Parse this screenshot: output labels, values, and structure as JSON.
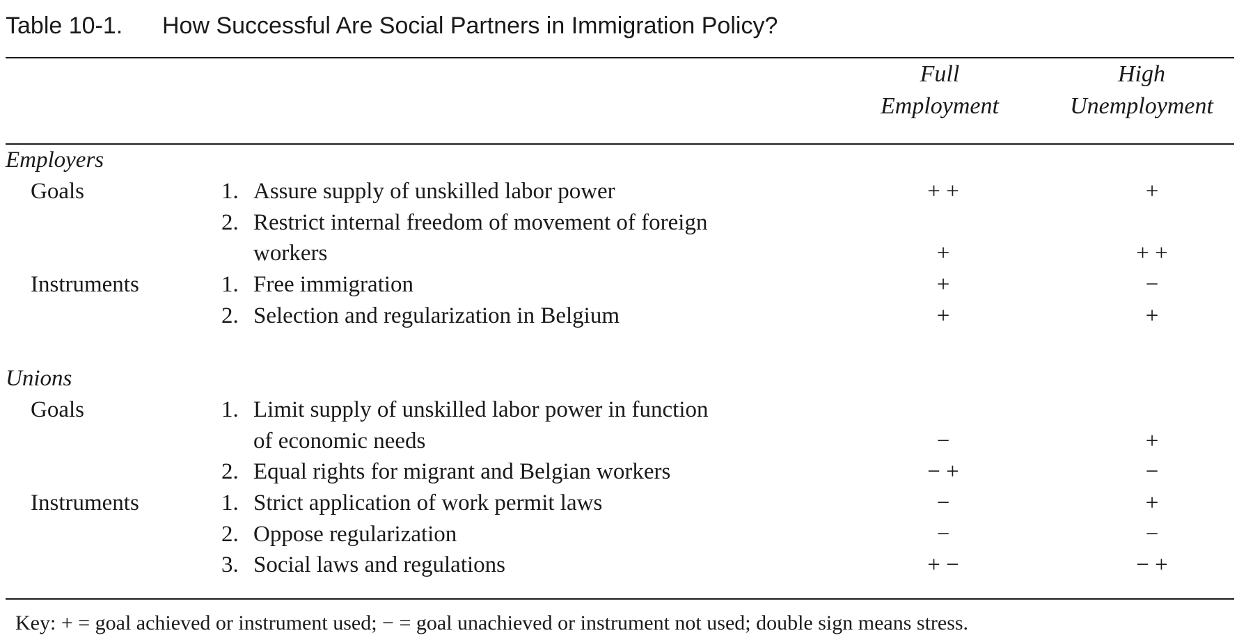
{
  "title": {
    "number": "Table 10-1.",
    "text": "How Successful Are Social Partners in Immigration Policy?"
  },
  "columns": {
    "full": [
      "Full",
      "Employment"
    ],
    "high": [
      "High",
      "Unemployment"
    ]
  },
  "employers": {
    "heading": "Employers",
    "goals_label": "Goals",
    "instruments_label": "Instruments",
    "goals": [
      {
        "num": "1.",
        "text": "Assure supply of unskilled labor power",
        "full": "+ +",
        "high": "+"
      },
      {
        "num": "2.",
        "text": "Restrict internal freedom of movement of foreign",
        "text2": "workers",
        "full": "+",
        "high": "+ +"
      }
    ],
    "instruments": [
      {
        "num": "1.",
        "text": "Free immigration",
        "full": "+",
        "high": "−"
      },
      {
        "num": "2.",
        "text": "Selection and regularization in Belgium",
        "full": "+",
        "high": "+"
      }
    ]
  },
  "unions": {
    "heading": "Unions",
    "goals_label": "Goals",
    "instruments_label": "Instruments",
    "goals": [
      {
        "num": "1.",
        "text": "Limit supply of unskilled labor power in function",
        "text2": "of economic needs",
        "full": "−",
        "high": "+"
      },
      {
        "num": "2.",
        "text": "Equal rights for migrant and Belgian workers",
        "full": "− +",
        "high": "−"
      }
    ],
    "instruments": [
      {
        "num": "1.",
        "text": "Strict application of work permit laws",
        "full": "−",
        "high": "+"
      },
      {
        "num": "2.",
        "text": "Oppose regularization",
        "full": "−",
        "high": "−"
      },
      {
        "num": "3.",
        "text": "Social laws and regulations",
        "full": "+ −",
        "high": "− +"
      }
    ]
  },
  "key": "Key: + = goal achieved or instrument used; − = goal unachieved or instrument not used; double sign means stress."
}
